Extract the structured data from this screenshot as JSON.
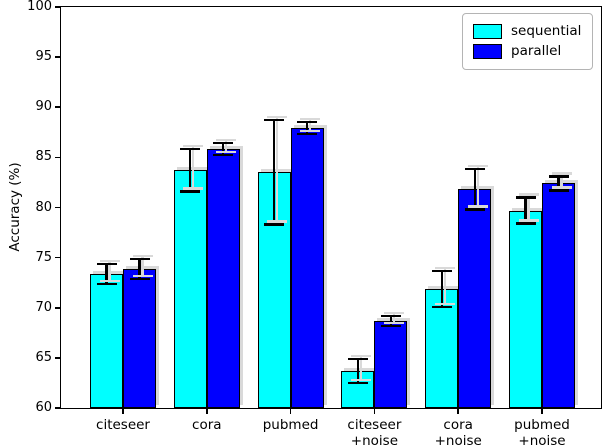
{
  "chart_data": {
    "type": "bar",
    "title": "",
    "xlabel": "",
    "ylabel": "Accuracy (%)",
    "ylim": [
      60,
      100
    ],
    "yticks": [
      60,
      65,
      70,
      75,
      80,
      85,
      90,
      95,
      100
    ],
    "grid": false,
    "legend_position": "upper right",
    "categories": [
      "citeseer",
      "cora",
      "pubmed",
      "citeseer\n+noise",
      "cora\n+noise",
      "pubmed\n+noise"
    ],
    "series": [
      {
        "name": "sequential",
        "color": "#00ffff",
        "values": [
          73.4,
          83.7,
          83.5,
          63.7,
          71.9,
          79.7
        ],
        "errors": [
          1.0,
          2.1,
          5.2,
          1.2,
          1.8,
          1.3
        ]
      },
      {
        "name": "parallel",
        "color": "#0000ff",
        "values": [
          73.9,
          85.8,
          87.9,
          68.7,
          81.8,
          82.4
        ],
        "errors": [
          1.0,
          0.6,
          0.6,
          0.5,
          2.0,
          0.7
        ]
      }
    ],
    "bar_edge_color": "#000000",
    "error_bar_color": "#000000"
  }
}
